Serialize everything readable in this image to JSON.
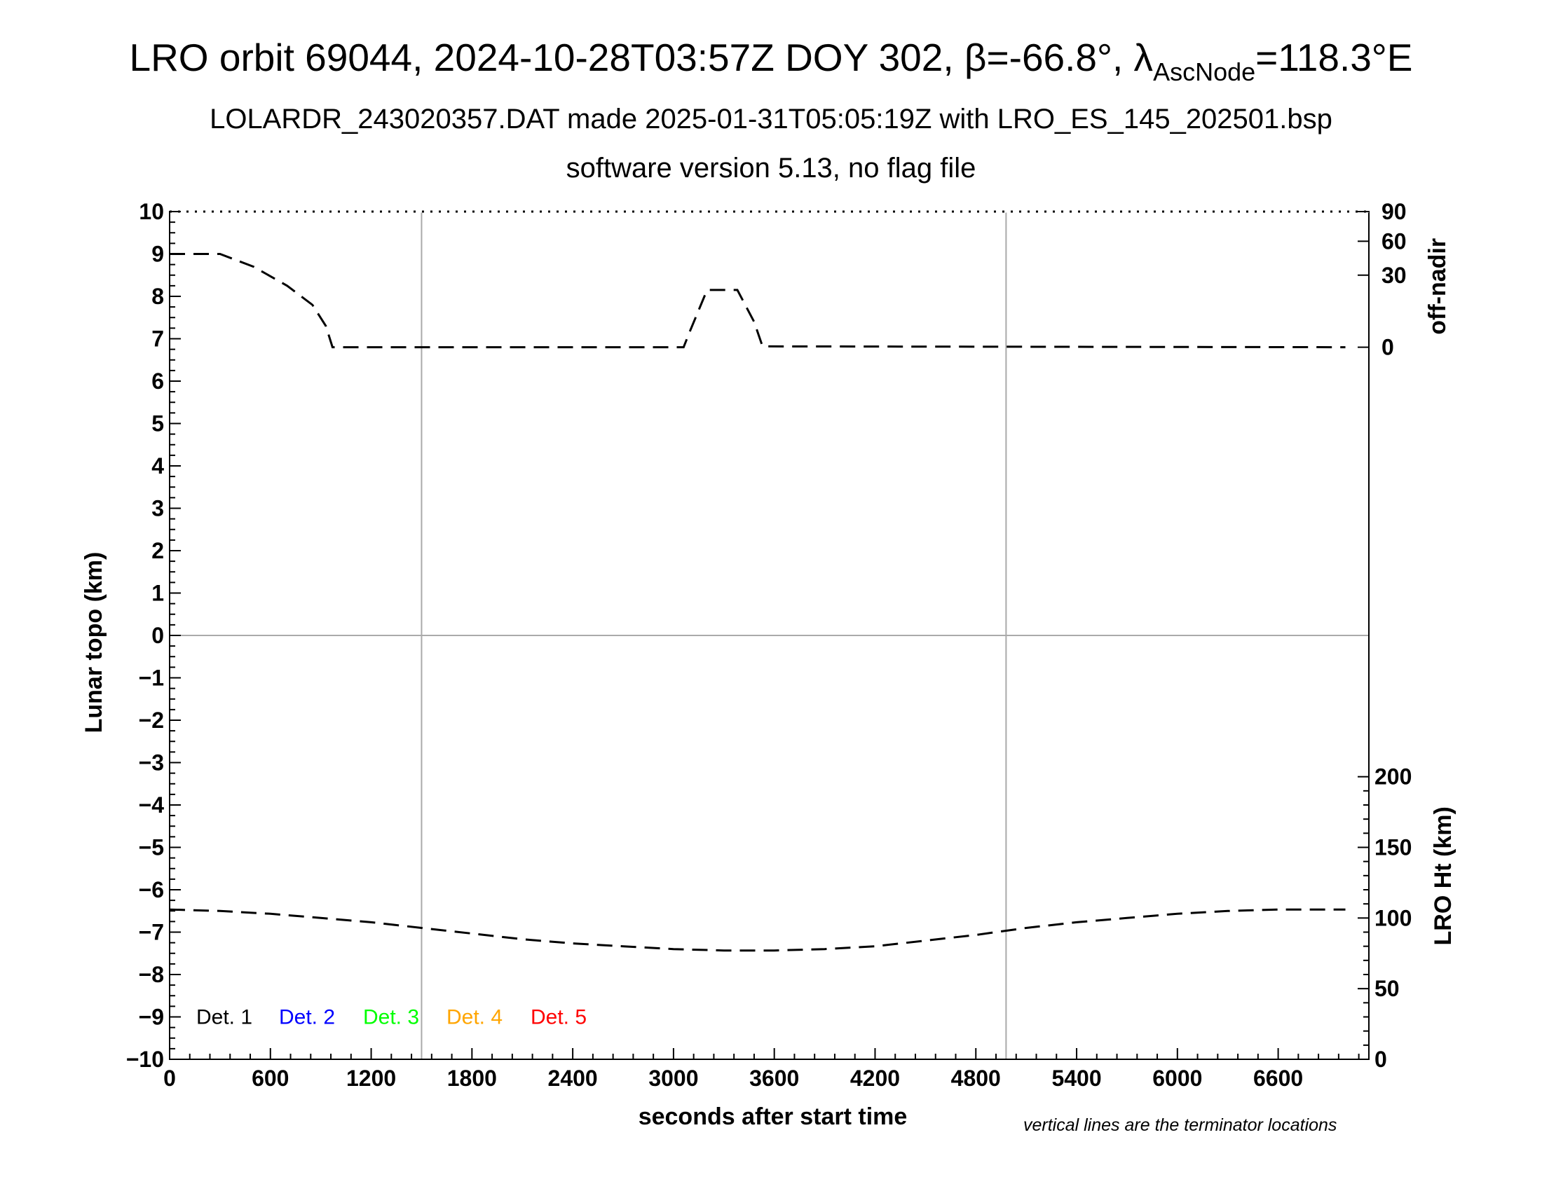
{
  "title": {
    "main_prefix": "LRO orbit 69044, 2024-10-28T03:57Z DOY 302, β=-66.8°, λ",
    "main_sub": "AscNode",
    "main_suffix": "=118.3°E",
    "subtitle1": "LOLARDR_243020357.DAT made 2025-01-31T05:05:19Z with LRO_ES_145_202501.bsp",
    "subtitle2": "software version 5.13, no flag file"
  },
  "footnote": "vertical lines are the terminator locations",
  "chart_data": {
    "type": "line",
    "xlabel": "seconds after start time",
    "ylabel": "Lunar topo (km)",
    "xlim": [
      0,
      7140
    ],
    "ylim": [
      -10,
      10
    ],
    "x_ticks": [
      0,
      600,
      1200,
      1800,
      2400,
      3000,
      3600,
      4200,
      4800,
      5400,
      6000,
      6600
    ],
    "y_ticks": [
      -10,
      -9,
      -8,
      -7,
      -6,
      -5,
      -4,
      -3,
      -2,
      -1,
      0,
      1,
      2,
      3,
      4,
      5,
      6,
      7,
      8,
      9,
      10
    ],
    "y_tick_labels": [
      "−10",
      "−9",
      "−8",
      "−7",
      "−6",
      "−5",
      "−4",
      "−3",
      "−2",
      "−1",
      "0",
      "1",
      "2",
      "3",
      "4",
      "5",
      "6",
      "7",
      "8",
      "9",
      "10"
    ],
    "terminator_lines_x": [
      1500,
      4980
    ],
    "zero_line_y": 0,
    "right_axis_top": {
      "label": "off-nadir",
      "tick_values": [
        0,
        30,
        60,
        90
      ],
      "tick_labels": [
        "0",
        "30",
        "60",
        "90"
      ],
      "map_to_left_y": [
        6.8,
        8.5,
        9.3,
        10
      ]
    },
    "right_axis_bottom": {
      "label": "LRO Ht (km)",
      "range": [
        0,
        300
      ],
      "tick_values": [
        0,
        50,
        100,
        150,
        200
      ],
      "tick_labels": [
        "0",
        "50",
        "100",
        "150",
        "200"
      ],
      "map_to_left_y": [
        -10,
        0
      ]
    },
    "series": [
      {
        "name": "off-nadir",
        "axis": "right_top",
        "style": "dashed",
        "color": "#000000",
        "points": [
          [
            0,
            9.0
          ],
          [
            300,
            9.0
          ],
          [
            500,
            8.7
          ],
          [
            700,
            8.25
          ],
          [
            850,
            7.8
          ],
          [
            930,
            7.3
          ],
          [
            970,
            6.8
          ],
          [
            3060,
            6.8
          ],
          [
            3100,
            7.2
          ],
          [
            3200,
            8.15
          ],
          [
            3380,
            8.15
          ],
          [
            3480,
            7.4
          ],
          [
            3530,
            6.82
          ],
          [
            7000,
            6.8
          ]
        ]
      },
      {
        "name": "LRO Ht",
        "axis": "right_bottom",
        "style": "dashed",
        "color": "#000000",
        "points": [
          [
            0,
            106
          ],
          [
            300,
            105
          ],
          [
            600,
            103
          ],
          [
            900,
            100
          ],
          [
            1200,
            97
          ],
          [
            1500,
            93
          ],
          [
            1800,
            89
          ],
          [
            2100,
            85
          ],
          [
            2400,
            82
          ],
          [
            2700,
            80
          ],
          [
            3000,
            78
          ],
          [
            3300,
            77
          ],
          [
            3600,
            77
          ],
          [
            3900,
            78
          ],
          [
            4200,
            80
          ],
          [
            4500,
            84
          ],
          [
            4800,
            88
          ],
          [
            5100,
            93
          ],
          [
            5400,
            97
          ],
          [
            5700,
            100
          ],
          [
            6000,
            103
          ],
          [
            6300,
            105
          ],
          [
            6600,
            106
          ],
          [
            7000,
            106
          ]
        ]
      }
    ],
    "legend": {
      "placement": "bottom-left",
      "entries": [
        {
          "label": "Det. 1",
          "color": "#000000"
        },
        {
          "label": "Det. 2",
          "color": "#0000ff"
        },
        {
          "label": "Det. 3",
          "color": "#00ff00"
        },
        {
          "label": "Det. 4",
          "color": "#ffa500"
        },
        {
          "label": "Det. 5",
          "color": "#ff0000"
        }
      ]
    }
  }
}
